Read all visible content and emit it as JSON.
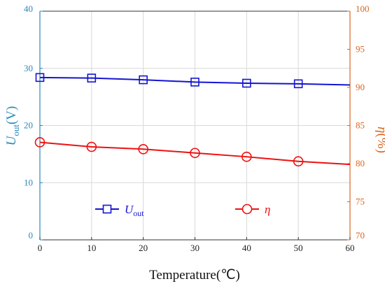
{
  "chart_data": {
    "type": "line",
    "x": [
      0,
      10,
      20,
      30,
      40,
      50,
      60
    ],
    "xlabel": "Temperature(℃)",
    "xlim": [
      0,
      60
    ],
    "xticks": [
      0,
      10,
      20,
      30,
      40,
      50,
      60
    ],
    "ylabel_left": {
      "main": "U",
      "sub": "out",
      "unit": "(V)"
    },
    "ylim_left": [
      0,
      40
    ],
    "yticks_left": [
      0,
      10,
      20,
      30,
      40
    ],
    "ylabel_right": {
      "main": "η",
      "unit": "(%)"
    },
    "ylim_right": [
      70,
      100
    ],
    "yticks_right": [
      70,
      75,
      80,
      85,
      90,
      95,
      100
    ],
    "grid": true,
    "series": [
      {
        "name_main": "U",
        "name_sub": "out",
        "axis": "left",
        "color": "#1414d2",
        "marker": "square",
        "markers_at": [
          0,
          10,
          20,
          30,
          40,
          50
        ],
        "values": [
          28.4,
          28.3,
          28.0,
          27.6,
          27.4,
          27.3,
          27.1
        ]
      },
      {
        "name_main": "η",
        "axis": "right",
        "color": "#ee1111",
        "marker": "circle",
        "markers_at": [
          0,
          10,
          20,
          30,
          40,
          50
        ],
        "values": [
          82.8,
          82.2,
          81.9,
          81.4,
          80.9,
          80.3,
          79.9
        ]
      }
    ],
    "legend": "inside-bottom"
  }
}
